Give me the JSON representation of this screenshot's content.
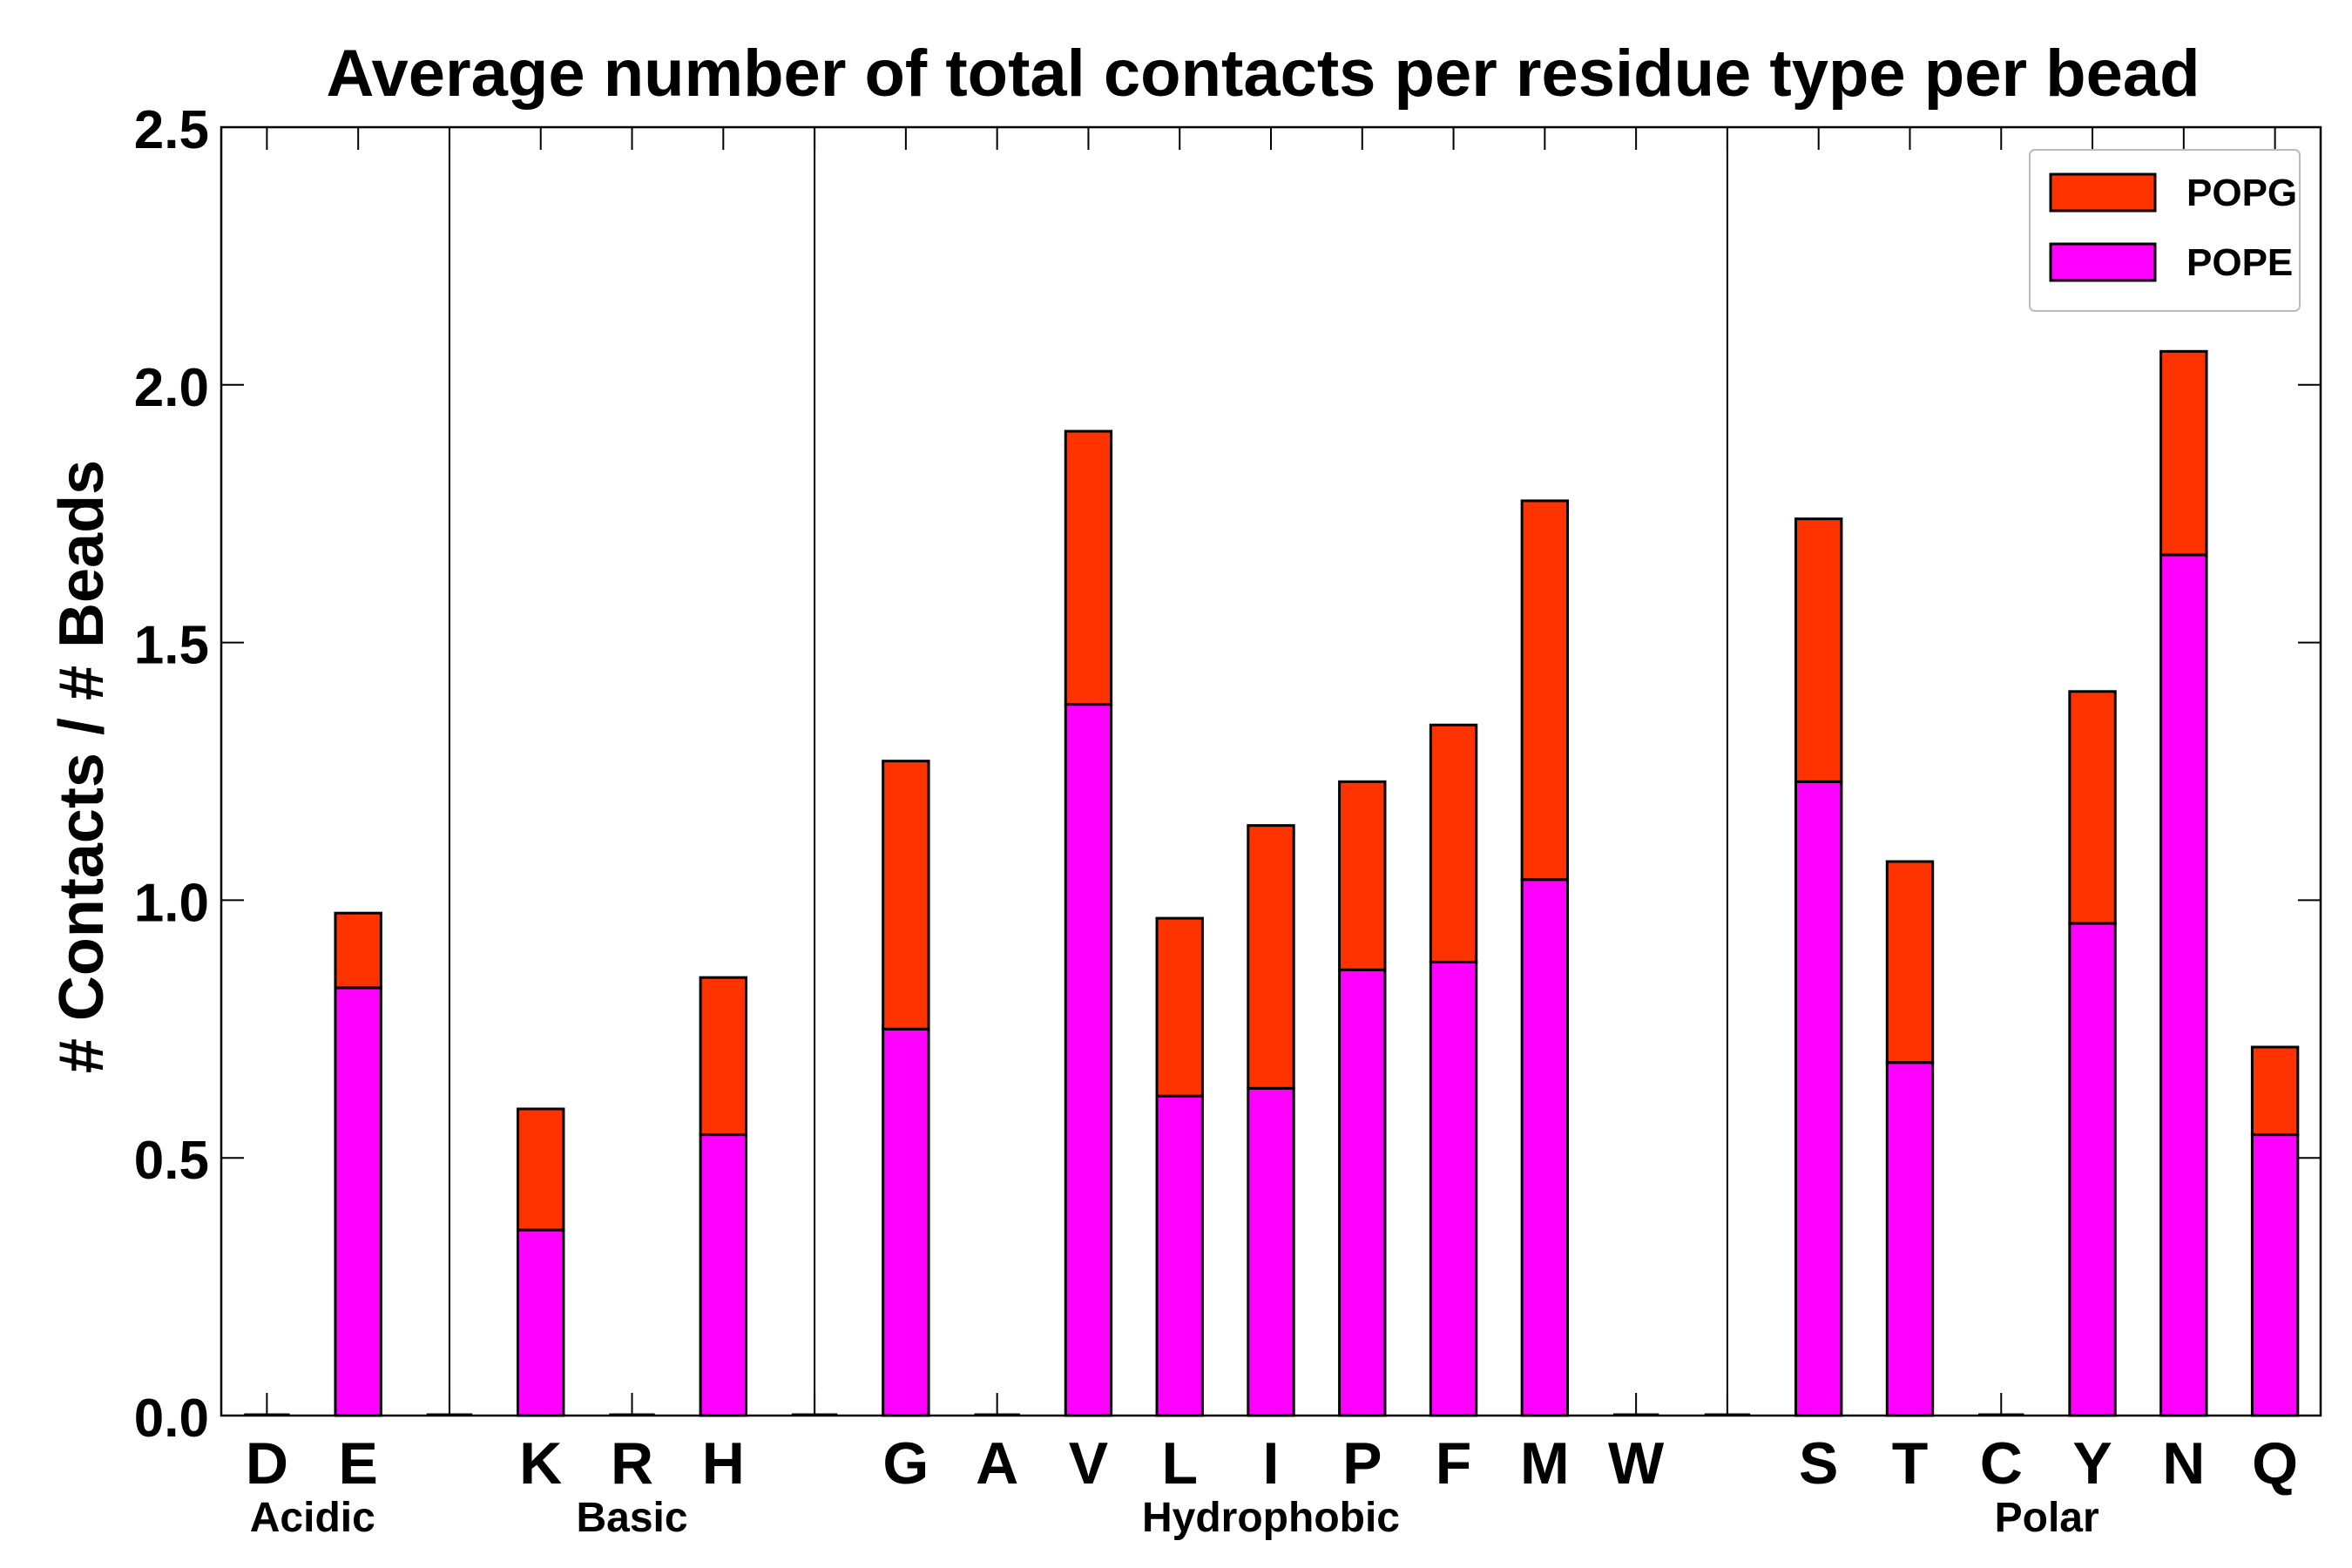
{
  "chart_data": {
    "type": "bar",
    "stacked": true,
    "title": "Average number of total contacts per residue type per bead",
    "xlabel": "",
    "ylabel": "# Contacts / # Beads",
    "ylim": [
      0,
      2.5
    ],
    "yticks": [
      "0.0",
      "0.5",
      "1.0",
      "1.5",
      "2.0",
      "2.5"
    ],
    "categories": [
      "D",
      "E",
      "",
      "K",
      "R",
      "H",
      "",
      "G",
      "A",
      "V",
      "L",
      "I",
      "P",
      "F",
      "M",
      "W",
      "",
      "S",
      "T",
      "C",
      "Y",
      "N",
      "Q"
    ],
    "series": [
      {
        "name": "POPE",
        "color": "#ff00ff",
        "values": [
          0,
          0.83,
          0,
          0.36,
          0,
          0.545,
          0,
          0.75,
          0,
          1.38,
          0.62,
          0.635,
          0.865,
          0.88,
          1.04,
          0,
          0,
          1.23,
          0.685,
          0,
          0.955,
          1.67,
          0.545
        ]
      },
      {
        "name": "POPG",
        "color": "#ff3300",
        "values": [
          0,
          0.145,
          0,
          0.235,
          0,
          0.305,
          0,
          0.52,
          0,
          0.53,
          0.345,
          0.51,
          0.365,
          0.46,
          0.735,
          0,
          0,
          0.51,
          0.39,
          0,
          0.45,
          0.395,
          0.17
        ]
      }
    ],
    "groups": [
      {
        "label": "Acidic",
        "from": 0,
        "to": 1
      },
      {
        "label": "Basic",
        "from": 3,
        "to": 5
      },
      {
        "label": "Hydrophobic",
        "from": 7,
        "to": 15
      },
      {
        "label": "Polar",
        "from": 17,
        "to": 22
      }
    ],
    "separators_after": [
      2,
      6,
      16
    ],
    "legend": {
      "placement": "top-right",
      "entries": [
        {
          "label": "POPG",
          "color": "#ff3300"
        },
        {
          "label": "POPE",
          "color": "#ff00ff"
        }
      ]
    },
    "grid": false
  }
}
